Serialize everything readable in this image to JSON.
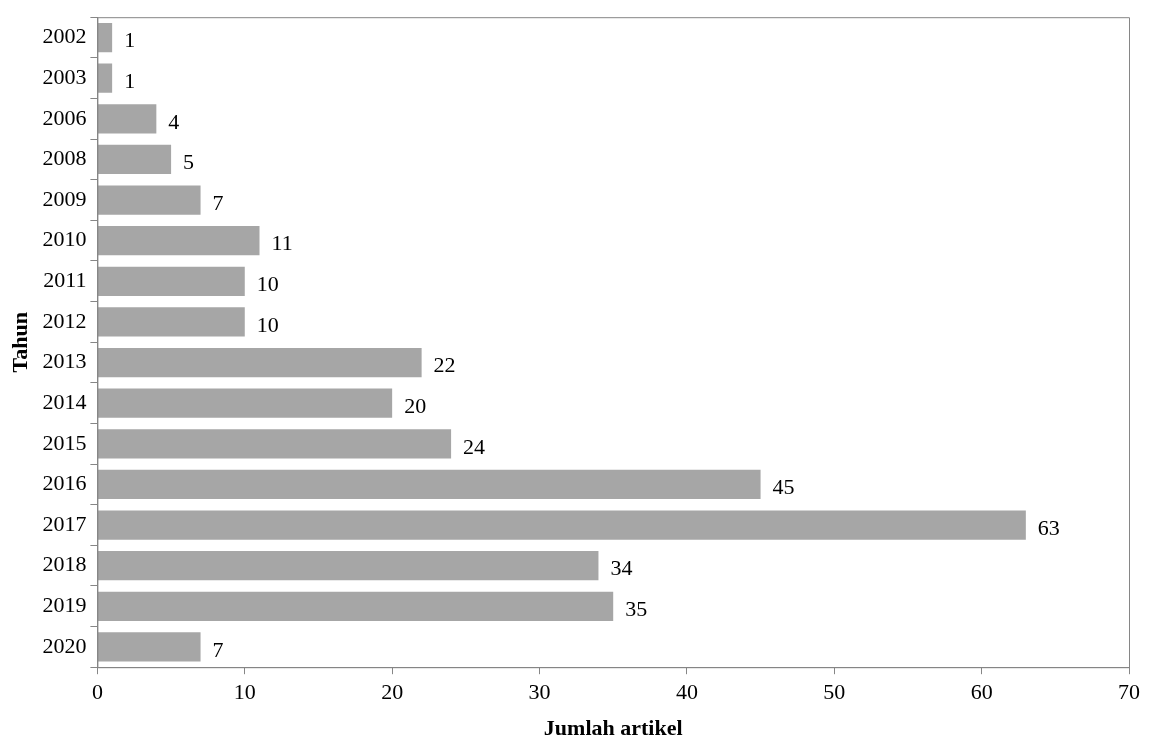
{
  "chart_data": {
    "type": "bar",
    "orientation": "horizontal",
    "xlabel": "Jumlah artikel",
    "ylabel": "Tahun",
    "categories": [
      "2002",
      "2003",
      "2006",
      "2008",
      "2009",
      "2010",
      "2011",
      "2012",
      "2013",
      "2014",
      "2015",
      "2016",
      "2017",
      "2018",
      "2019",
      "2020"
    ],
    "values": [
      1,
      1,
      4,
      5,
      7,
      11,
      10,
      10,
      22,
      20,
      24,
      45,
      63,
      34,
      35,
      7
    ],
    "color": "#a6a6a6",
    "xlim": [
      0,
      70
    ],
    "xticks": [
      0,
      10,
      20,
      30,
      40,
      50,
      60,
      70
    ],
    "grid": false,
    "legend": false,
    "data_labels": true
  }
}
